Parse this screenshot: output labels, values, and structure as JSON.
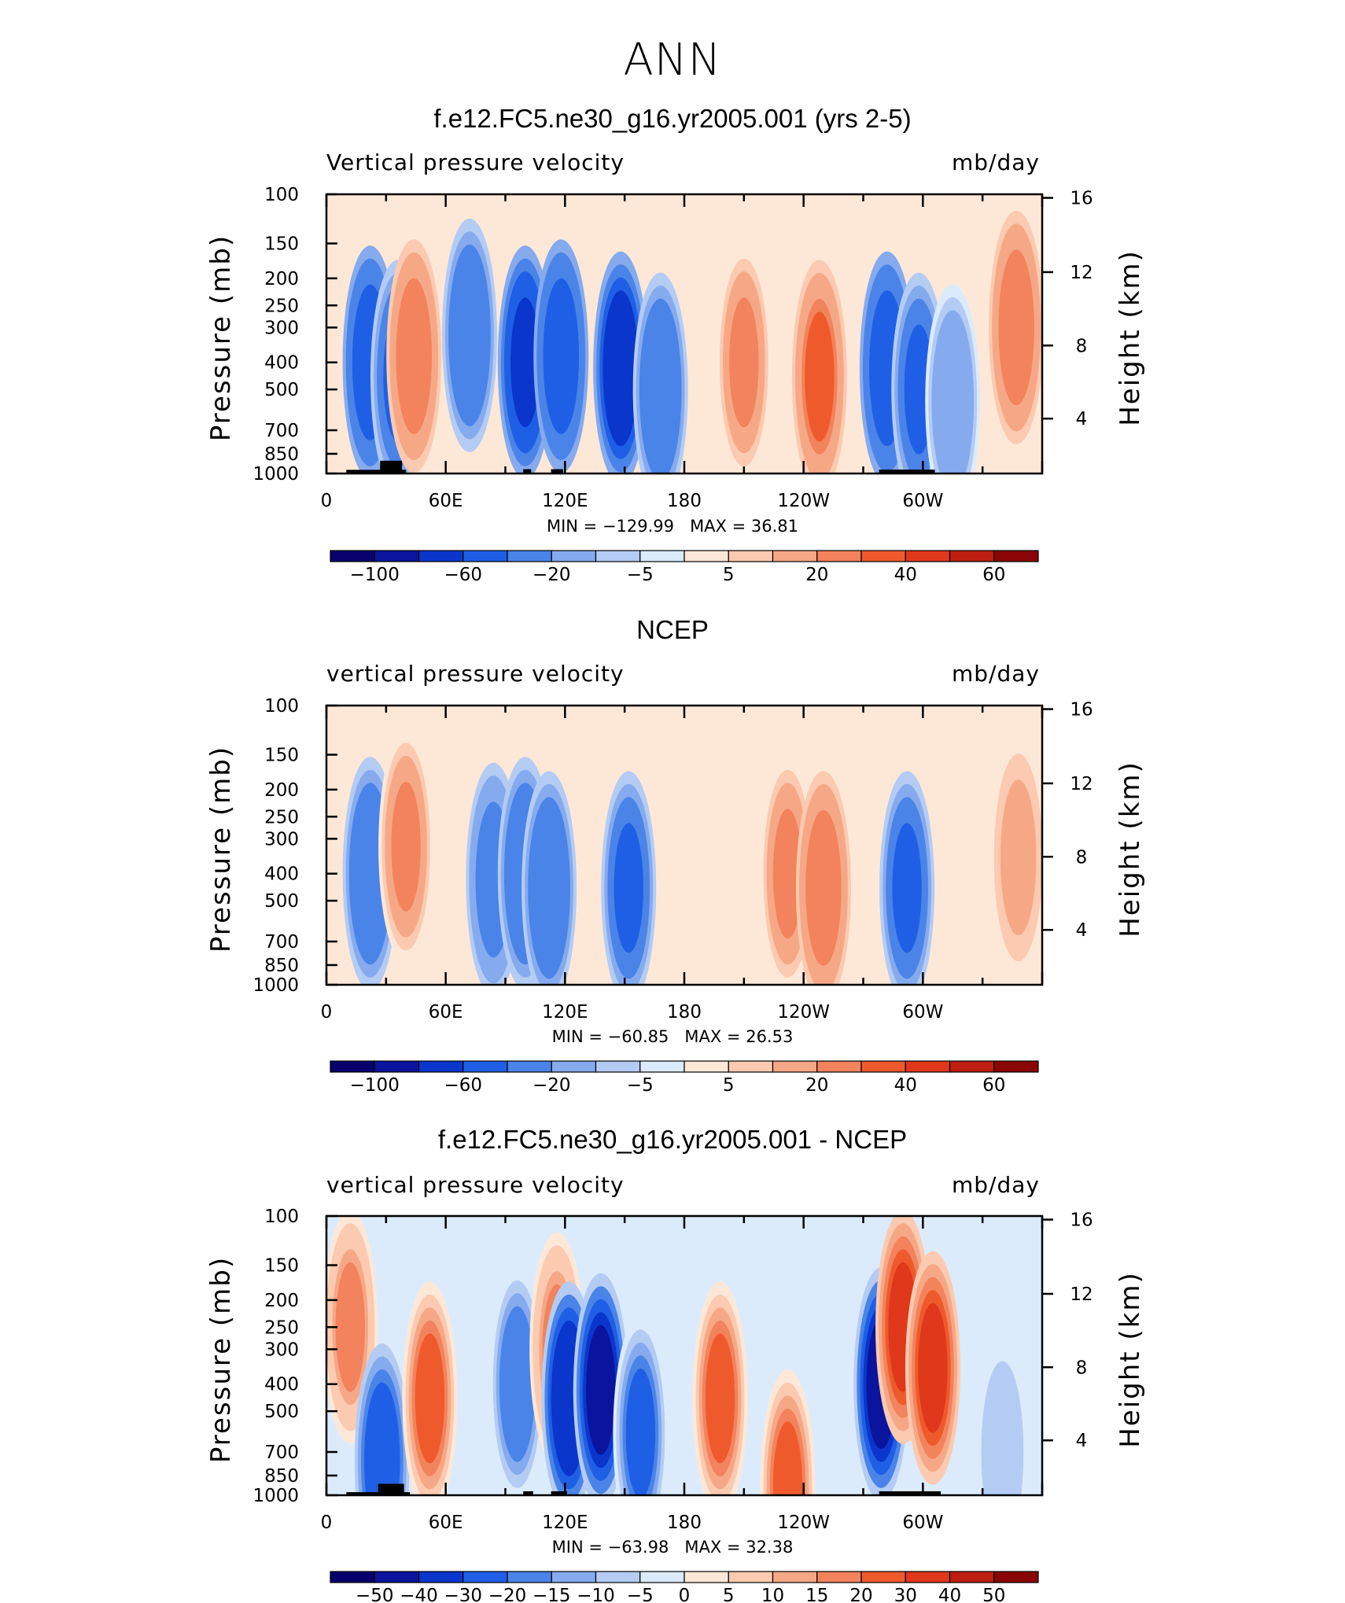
{
  "main_title": "ANN",
  "palette": [
    "#08006b",
    "#0a149c",
    "#0a36cc",
    "#1f5fe6",
    "#4a84e8",
    "#86aaee",
    "#b4ccf4",
    "#dcebfb",
    "#fde8d8",
    "#fbcab0",
    "#f6a886",
    "#f2835c",
    "#ef5a2c",
    "#e0381a",
    "#bd1e10",
    "#8a0505"
  ],
  "chart_data": [
    {
      "type": "heatmap",
      "title": "f.e12.FC5.ne30_g16.yr2005.001 (yrs 2-5)",
      "variable": "Vertical pressure velocity",
      "units": "mb/day",
      "ylabel": "Pressure (mb)",
      "ylabel_right": "Height (km)",
      "x_ticks": [
        "0",
        "60E",
        "120E",
        "180",
        "120W",
        "60W"
      ],
      "y_ticks": [
        "100",
        "150",
        "200",
        "250",
        "300",
        "400",
        "500",
        "700",
        "850",
        "1000"
      ],
      "height_ticks": [
        "16",
        "12",
        "8",
        "4"
      ],
      "min_text": "MIN = −129.99",
      "max_text": "MAX = 36.81",
      "colorbar_labels": [
        "−100",
        "−60",
        "−20",
        "−5",
        "5",
        "20",
        "40",
        "60"
      ],
      "features": [
        {
          "lon": 22,
          "p": 400,
          "v": -60
        },
        {
          "lon": 36,
          "p": 450,
          "v": -50
        },
        {
          "lon": 44,
          "p": 380,
          "v": 25
        },
        {
          "lon": 72,
          "p": 320,
          "v": -40
        },
        {
          "lon": 100,
          "p": 400,
          "v": -70
        },
        {
          "lon": 118,
          "p": 380,
          "v": -60
        },
        {
          "lon": 148,
          "p": 420,
          "v": -80
        },
        {
          "lon": 168,
          "p": 500,
          "v": -40
        },
        {
          "lon": 210,
          "p": 400,
          "v": 20
        },
        {
          "lon": 248,
          "p": 450,
          "v": 30
        },
        {
          "lon": 282,
          "p": 420,
          "v": -60
        },
        {
          "lon": 298,
          "p": 500,
          "v": -50
        },
        {
          "lon": 315,
          "p": 550,
          "v": -20
        },
        {
          "lon": 347,
          "p": 300,
          "v": 25
        }
      ],
      "topography": [
        {
          "lon_start": 10,
          "lon_end": 40,
          "p_top": 970
        },
        {
          "lon_start": 27,
          "lon_end": 38,
          "p_top": 900
        },
        {
          "lon_start": 99,
          "lon_end": 103,
          "p_top": 965
        },
        {
          "lon_start": 113,
          "lon_end": 119,
          "p_top": 965
        },
        {
          "lon_start": 278,
          "lon_end": 306,
          "p_top": 968
        }
      ]
    },
    {
      "type": "heatmap",
      "title": "NCEP",
      "variable": "vertical pressure velocity",
      "units": "mb/day",
      "ylabel": "Pressure (mb)",
      "ylabel_right": "Height (km)",
      "x_ticks": [
        "0",
        "60E",
        "120E",
        "180",
        "120W",
        "60W"
      ],
      "y_ticks": [
        "100",
        "150",
        "200",
        "250",
        "300",
        "400",
        "500",
        "700",
        "850",
        "1000"
      ],
      "height_ticks": [
        "16",
        "12",
        "8",
        "4"
      ],
      "min_text": "MIN = −60.85",
      "max_text": "MAX = 26.53",
      "colorbar_labels": [
        "−100",
        "−60",
        "−20",
        "−5",
        "5",
        "20",
        "40",
        "60"
      ],
      "features": [
        {
          "lon": 22,
          "p": 400,
          "v": -40
        },
        {
          "lon": 40,
          "p": 320,
          "v": 20
        },
        {
          "lon": 84,
          "p": 420,
          "v": -30
        },
        {
          "lon": 100,
          "p": 400,
          "v": -35
        },
        {
          "lon": 112,
          "p": 450,
          "v": -40
        },
        {
          "lon": 152,
          "p": 450,
          "v": -50
        },
        {
          "lon": 232,
          "p": 400,
          "v": 20
        },
        {
          "lon": 250,
          "p": 450,
          "v": 25
        },
        {
          "lon": 292,
          "p": 450,
          "v": -50
        },
        {
          "lon": 348,
          "p": 350,
          "v": 15
        }
      ],
      "topography": []
    },
    {
      "type": "heatmap",
      "title": "f.e12.FC5.ne30_g16.yr2005.001 - NCEP",
      "variable": "vertical pressure velocity",
      "units": "mb/day",
      "ylabel": "Pressure (mb)",
      "ylabel_right": "Height (km)",
      "x_ticks": [
        "0",
        "60E",
        "120E",
        "180",
        "120W",
        "60W"
      ],
      "y_ticks": [
        "100",
        "150",
        "200",
        "250",
        "300",
        "400",
        "500",
        "700",
        "850",
        "1000"
      ],
      "height_ticks": [
        "16",
        "12",
        "8",
        "4"
      ],
      "min_text": "MIN = −63.98",
      "max_text": "MAX = 32.38",
      "colorbar_labels": [
        "−50",
        "−40",
        "−30",
        "−20",
        "−15",
        "−10",
        "−5",
        "0",
        "5",
        "10",
        "15",
        "20",
        "30",
        "40",
        "50"
      ],
      "features": [
        {
          "lon": 12,
          "p": 250,
          "v": 15
        },
        {
          "lon": 28,
          "p": 750,
          "v": -30
        },
        {
          "lon": 52,
          "p": 450,
          "v": 20
        },
        {
          "lon": 96,
          "p": 400,
          "v": -20
        },
        {
          "lon": 116,
          "p": 300,
          "v": 15
        },
        {
          "lon": 122,
          "p": 450,
          "v": -40
        },
        {
          "lon": 138,
          "p": 420,
          "v": -50
        },
        {
          "lon": 158,
          "p": 600,
          "v": -25
        },
        {
          "lon": 198,
          "p": 450,
          "v": 20
        },
        {
          "lon": 232,
          "p": 930,
          "v": 20
        },
        {
          "lon": 279,
          "p": 400,
          "v": -45
        },
        {
          "lon": 290,
          "p": 250,
          "v": 30
        },
        {
          "lon": 305,
          "p": 350,
          "v": 30
        },
        {
          "lon": 340,
          "p": 700,
          "v": -10
        }
      ],
      "topography": [
        {
          "lon_start": 10,
          "lon_end": 42,
          "p_top": 975
        },
        {
          "lon_start": 26,
          "lon_end": 39,
          "p_top": 910
        },
        {
          "lon_start": 99,
          "lon_end": 104,
          "p_top": 968
        },
        {
          "lon_start": 113,
          "lon_end": 121,
          "p_top": 968
        },
        {
          "lon_start": 278,
          "lon_end": 309,
          "p_top": 968
        }
      ]
    }
  ]
}
